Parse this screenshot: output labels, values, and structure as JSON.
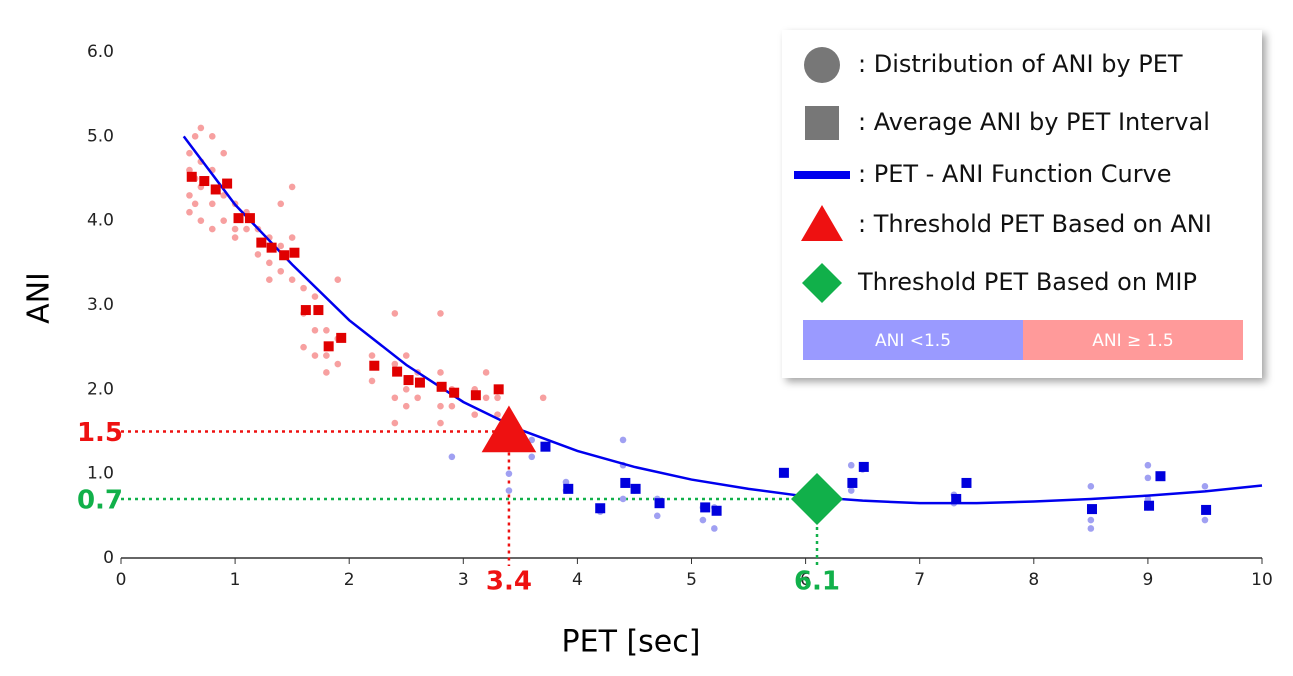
{
  "chart_data": {
    "type": "scatter",
    "x_label": "PET [sec]",
    "y_label": "ANI",
    "xlim": [
      0,
      10
    ],
    "ylim": [
      0,
      6
    ],
    "xticks": [
      0,
      1,
      2,
      3,
      4,
      5,
      6,
      7,
      8,
      9,
      10
    ],
    "yticks": [
      0,
      {
        "value": 1,
        "label": "1.0"
      },
      {
        "value": 2,
        "label": "2.0"
      },
      {
        "value": 3,
        "label": "3.0"
      },
      {
        "value": 4,
        "label": "4.0"
      },
      {
        "value": 5,
        "label": "5.0"
      },
      {
        "value": 6,
        "label": "6.0"
      }
    ],
    "distribution": [
      {
        "color": "#f7a0a0",
        "x": [
          0.6,
          0.6,
          0.6,
          0.6,
          0.65,
          0.65,
          0.65,
          0.7,
          0.7,
          0.7,
          0.7,
          0.8,
          0.8,
          0.8,
          0.8,
          0.9,
          0.9,
          0.9,
          1.0,
          1.0,
          1.0,
          1.1,
          1.1,
          1.2,
          1.2,
          1.3,
          1.3,
          1.3,
          1.4,
          1.4,
          1.4,
          1.5,
          1.5,
          1.5,
          1.6,
          1.6,
          1.6,
          1.7,
          1.7,
          1.7,
          1.8,
          1.8,
          1.8,
          1.9,
          1.9,
          1.9,
          2.2,
          2.2,
          2.4,
          2.4,
          2.4,
          2.4,
          2.5,
          2.5,
          2.5,
          2.6,
          2.6,
          2.8,
          2.8,
          2.8,
          2.8,
          2.9,
          2.9,
          3.1,
          3.1,
          3.2,
          3.2,
          3.3,
          3.3,
          3.7
        ],
        "y": [
          4.8,
          4.6,
          4.3,
          4.1,
          5.0,
          4.5,
          4.2,
          5.1,
          4.7,
          4.4,
          4.0,
          5.0,
          4.6,
          4.2,
          3.9,
          4.8,
          4.3,
          4.0,
          4.2,
          3.9,
          3.8,
          4.1,
          3.9,
          3.9,
          3.6,
          3.8,
          3.5,
          3.3,
          4.2,
          3.7,
          3.4,
          4.4,
          3.8,
          3.3,
          3.2,
          2.9,
          2.5,
          3.1,
          2.7,
          2.4,
          2.7,
          2.4,
          2.2,
          3.3,
          2.6,
          2.3,
          2.4,
          2.1,
          2.9,
          2.3,
          1.9,
          1.6,
          2.4,
          2.0,
          1.8,
          2.2,
          1.9,
          2.9,
          2.2,
          1.8,
          1.6,
          2.0,
          1.8,
          2.0,
          1.7,
          2.2,
          1.9,
          1.9,
          1.7,
          1.9
        ]
      },
      {
        "color": "#a0a0f2",
        "x": [
          2.9,
          3.4,
          3.4,
          3.4,
          3.6,
          3.6,
          3.9,
          3.9,
          4.2,
          4.2,
          4.4,
          4.4,
          4.4,
          4.5,
          4.7,
          4.7,
          5.1,
          5.1,
          5.2,
          5.2,
          5.8,
          6.4,
          6.4,
          6.4,
          6.5,
          7.3,
          7.3,
          8.5,
          8.5,
          8.5,
          9.0,
          9.0,
          9.0,
          9.0,
          9.5,
          9.5
        ],
        "y": [
          1.2,
          1.3,
          1.0,
          0.8,
          1.4,
          1.2,
          0.9,
          0.8,
          0.6,
          0.55,
          1.4,
          1.1,
          0.7,
          0.8,
          0.7,
          0.5,
          0.6,
          0.45,
          0.35,
          0.6,
          1.0,
          1.1,
          0.9,
          0.8,
          1.05,
          0.75,
          0.65,
          0.85,
          0.45,
          0.35,
          1.1,
          0.95,
          0.7,
          0.6,
          0.85,
          0.45
        ]
      }
    ],
    "averages": [
      {
        "color": "#e00000",
        "x": [
          0.62,
          0.73,
          0.83,
          0.93,
          1.03,
          1.13,
          1.23,
          1.32,
          1.43,
          1.52,
          1.62,
          1.73,
          1.82,
          1.93,
          2.22,
          2.42,
          2.52,
          2.62,
          2.81,
          2.92,
          3.11,
          3.31
        ],
        "y": [
          4.52,
          4.47,
          4.37,
          4.44,
          4.03,
          4.03,
          3.74,
          3.68,
          3.59,
          3.62,
          2.94,
          2.94,
          2.51,
          2.61,
          2.28,
          2.21,
          2.11,
          2.08,
          2.03,
          1.96,
          1.93,
          2.0
        ]
      },
      {
        "color": "#0000dd",
        "x": [
          3.72,
          3.92,
          4.2,
          4.42,
          4.51,
          4.72,
          5.12,
          5.22,
          5.81,
          6.41,
          6.51,
          7.32,
          7.41,
          8.51,
          9.01,
          9.11,
          9.51
        ],
        "y": [
          1.32,
          0.82,
          0.59,
          0.89,
          0.82,
          0.65,
          0.6,
          0.56,
          1.01,
          0.89,
          1.08,
          0.7,
          0.89,
          0.58,
          0.62,
          0.97,
          0.57
        ]
      }
    ],
    "curve": {
      "color": "#0000ee",
      "x": [
        0.55,
        1,
        1.5,
        2,
        2.5,
        3,
        3.5,
        4,
        4.5,
        5,
        5.5,
        6,
        6.5,
        7,
        7.5,
        8,
        8.5,
        9,
        9.5,
        10
      ],
      "y": [
        5.0,
        4.19,
        3.48,
        2.82,
        2.29,
        1.85,
        1.52,
        1.27,
        1.08,
        0.93,
        0.82,
        0.73,
        0.68,
        0.65,
        0.65,
        0.67,
        0.7,
        0.74,
        0.79,
        0.86
      ]
    },
    "thresholds": [
      {
        "x": 3.4,
        "y": 1.5,
        "color": "#ee1111",
        "shape": "triangle"
      },
      {
        "x": 6.1,
        "y": 0.7,
        "color": "#11b04a",
        "shape": "diamond"
      }
    ],
    "legend": [
      {
        "marker": "circle",
        "text": ": Distribution of ANI by PET"
      },
      {
        "marker": "square",
        "text": ": Average ANI by PET Interval"
      },
      {
        "marker": "line",
        "text": ": PET - ANI Function Curve"
      },
      {
        "marker": "triangle",
        "text": ": Threshold PET Based on ANI"
      },
      {
        "marker": "diamond",
        "text": "Threshold PET Based on MIP"
      }
    ],
    "color_key": [
      {
        "label": "ANI <1.5",
        "color": "#9a9aff"
      },
      {
        "label": "ANI ≥ 1.5",
        "color": "#ff9a9a"
      }
    ]
  }
}
